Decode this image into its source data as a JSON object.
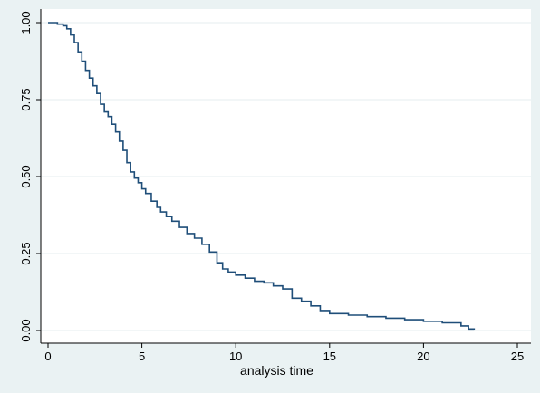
{
  "chart_data": {
    "type": "line",
    "title": "",
    "xlabel": "analysis time",
    "ylabel": "",
    "xlim": [
      0,
      25
    ],
    "ylim": [
      0,
      1
    ],
    "x_ticks": [
      0,
      5,
      10,
      15,
      20,
      25
    ],
    "x_tick_labels": [
      "0",
      "5",
      "10",
      "15",
      "20",
      "25"
    ],
    "y_ticks": [
      0,
      0.25,
      0.5,
      0.75,
      1
    ],
    "y_tick_labels": [
      "0.00",
      "0.25",
      "0.50",
      "0.75",
      "1.00"
    ],
    "grid": "horizontal",
    "legend": "none",
    "colors": {
      "background": "#eaf2f3",
      "plot_area": "#ffffff",
      "line": "#1f4e79",
      "grid": "#e4ecef"
    },
    "series": [
      {
        "step": true,
        "x": [
          0,
          0.5,
          0.8,
          1.0,
          1.2,
          1.4,
          1.6,
          1.8,
          2.0,
          2.2,
          2.4,
          2.6,
          2.8,
          3.0,
          3.2,
          3.4,
          3.6,
          3.8,
          4.0,
          4.2,
          4.4,
          4.6,
          4.8,
          5.0,
          5.2,
          5.5,
          5.8,
          6.0,
          6.3,
          6.6,
          7.0,
          7.4,
          7.8,
          8.2,
          8.6,
          9.0,
          9.3,
          9.6,
          10.0,
          10.5,
          11.0,
          11.5,
          12.0,
          12.5,
          13.0,
          13.5,
          14.0,
          14.5,
          15.0,
          16.0,
          17.0,
          18.0,
          19.0,
          20.0,
          21.0,
          22.0,
          22.4,
          22.7
        ],
        "y": [
          1.0,
          0.995,
          0.99,
          0.98,
          0.96,
          0.935,
          0.905,
          0.875,
          0.845,
          0.82,
          0.795,
          0.77,
          0.735,
          0.71,
          0.695,
          0.67,
          0.645,
          0.615,
          0.585,
          0.545,
          0.515,
          0.495,
          0.48,
          0.46,
          0.445,
          0.42,
          0.4,
          0.385,
          0.37,
          0.355,
          0.335,
          0.315,
          0.3,
          0.28,
          0.255,
          0.22,
          0.2,
          0.19,
          0.18,
          0.17,
          0.16,
          0.155,
          0.145,
          0.135,
          0.105,
          0.095,
          0.08,
          0.065,
          0.055,
          0.05,
          0.045,
          0.04,
          0.035,
          0.03,
          0.025,
          0.015,
          0.005,
          0.003
        ]
      }
    ]
  }
}
